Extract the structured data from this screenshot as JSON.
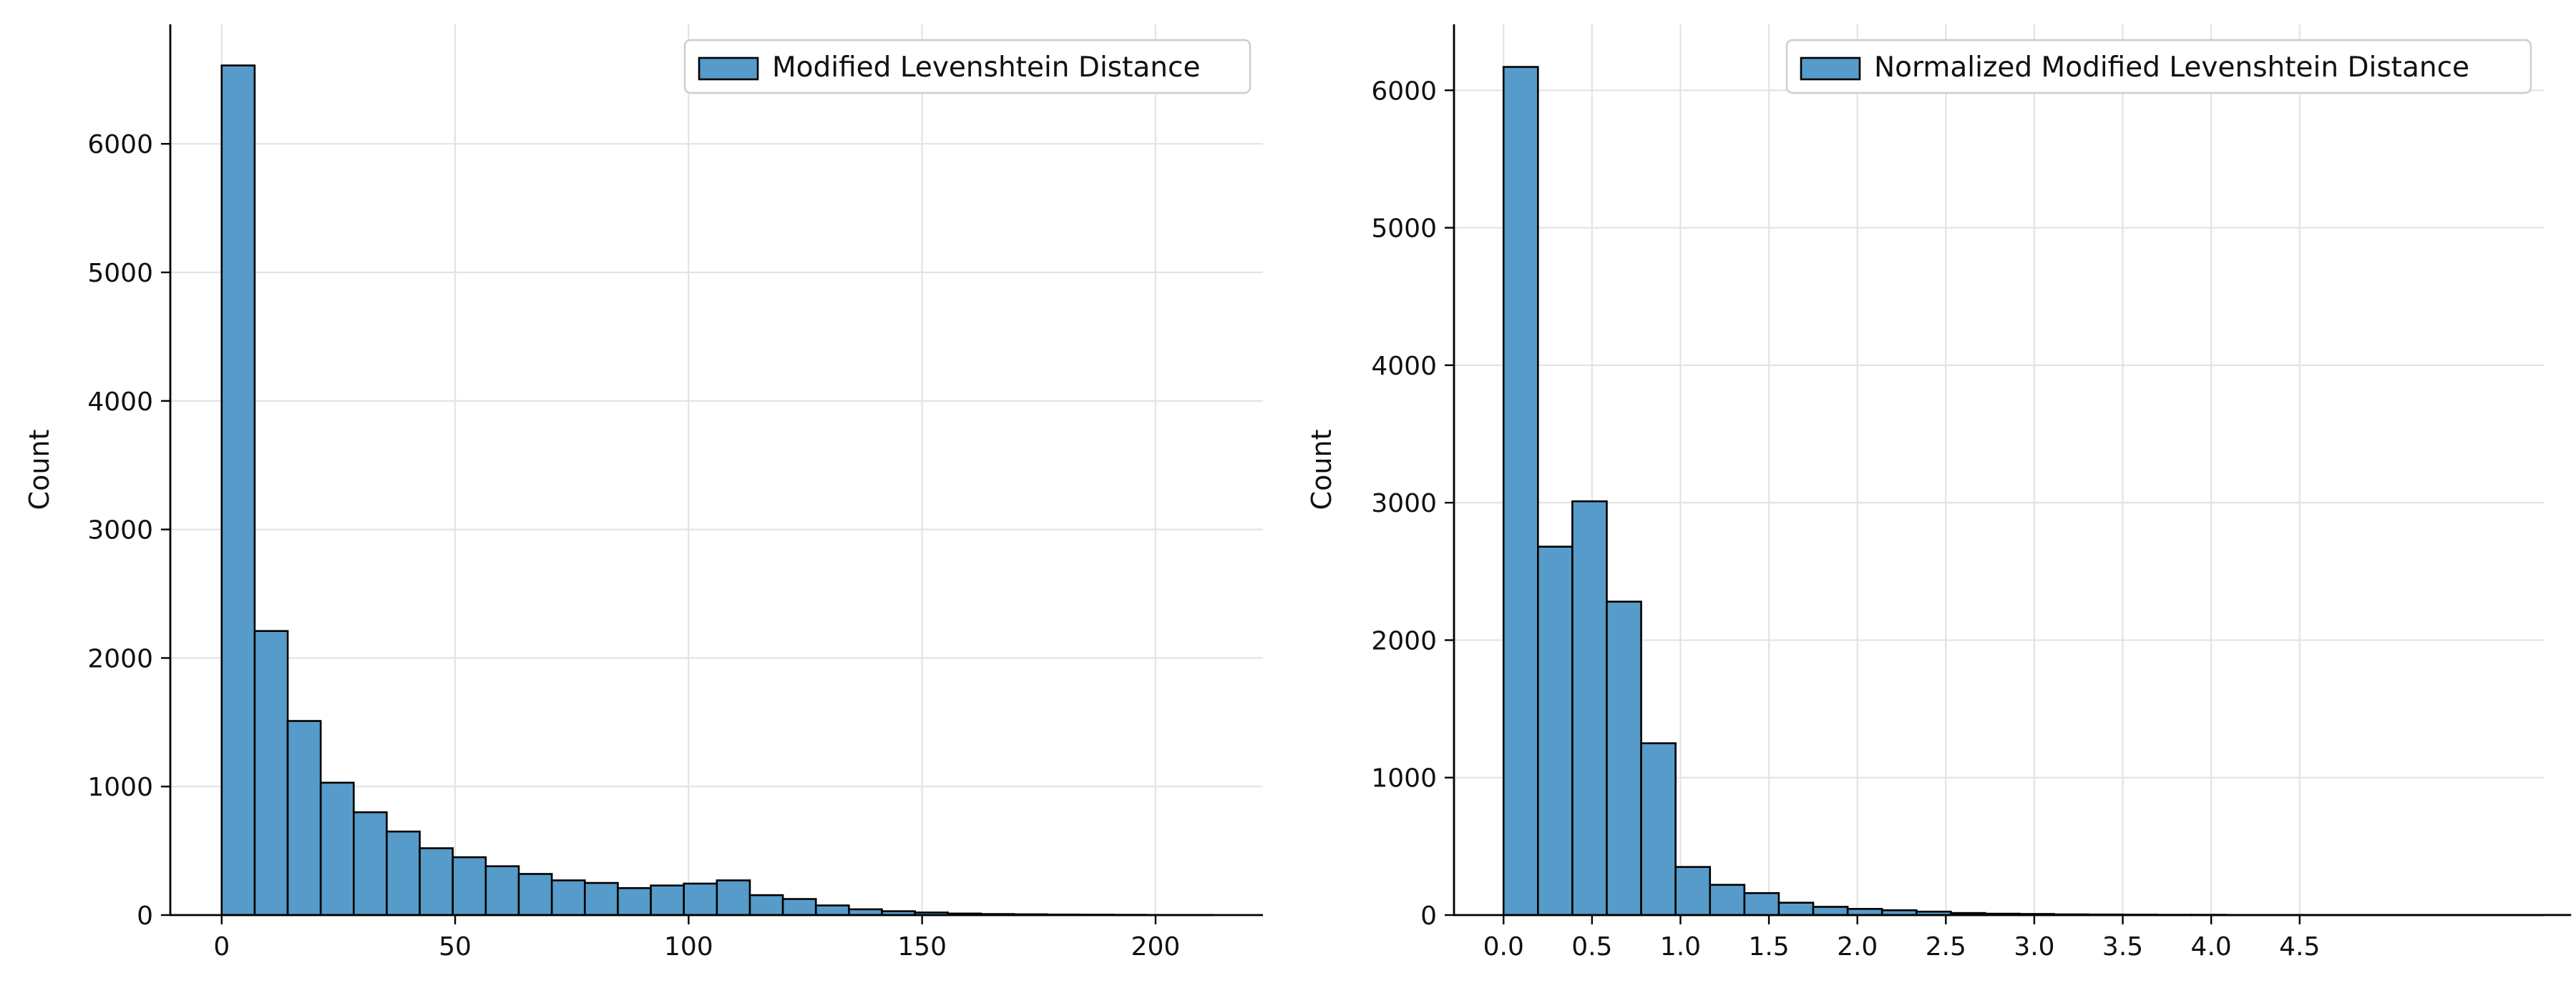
{
  "colors": {
    "bar_fill": "#569bc9",
    "bar_edge": "#000000",
    "grid": "#e3e3e3"
  },
  "chart_data": [
    {
      "type": "bar",
      "title": "",
      "xlabel": "",
      "ylabel": "Count",
      "legend": [
        "Modified Levenshtein Distance"
      ],
      "legend_position": "top-right",
      "grid": true,
      "xlim": [
        -11,
        223
      ],
      "ylim": [
        0,
        6930
      ],
      "xticks": [
        0,
        50,
        100,
        150,
        200
      ],
      "yticks": [
        0,
        1000,
        2000,
        3000,
        4000,
        5000,
        6000
      ],
      "bin_width": 7.07,
      "bin_start": 0,
      "series": [
        {
          "name": "Modified Levenshtein Distance",
          "values": [
            6610,
            2210,
            1510,
            1030,
            800,
            650,
            520,
            450,
            380,
            320,
            270,
            250,
            210,
            230,
            245,
            270,
            155,
            125,
            75,
            45,
            30,
            20,
            12,
            8,
            6,
            4,
            3,
            2,
            1,
            1
          ]
        }
      ]
    },
    {
      "type": "bar",
      "title": "",
      "xlabel": "",
      "ylabel": "Count",
      "legend": [
        "Normalized Modified Levenshtein Distance"
      ],
      "legend_position": "top-right",
      "grid": true,
      "xlim": [
        -0.28,
        5.88
      ],
      "ylim": [
        0,
        6480
      ],
      "xticks": [
        "0.0",
        "0.5",
        "1.0",
        "1.5",
        "2.0",
        "2.5",
        "3.0",
        "3.5",
        "4.0",
        "4.5"
      ],
      "yticks": [
        0,
        1000,
        2000,
        3000,
        4000,
        5000,
        6000
      ],
      "bin_width": 0.1945,
      "bin_start": 0,
      "series": [
        {
          "name": "Normalized Modified Levenshtein Distance",
          "values": [
            6170,
            2680,
            3010,
            2280,
            1250,
            350,
            220,
            160,
            90,
            60,
            45,
            35,
            25,
            15,
            10,
            8,
            5,
            4,
            3,
            2,
            2,
            1,
            1,
            1,
            1,
            1,
            1,
            1,
            1,
            1,
            1
          ]
        }
      ]
    }
  ]
}
